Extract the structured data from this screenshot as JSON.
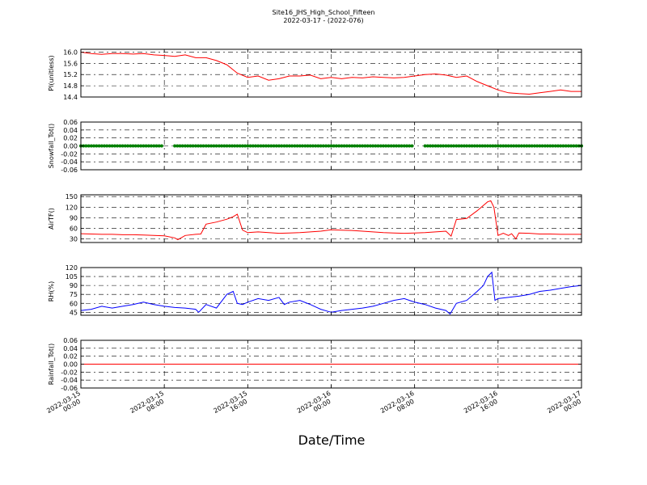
{
  "title": "Site16_JHS_High_School_Fifteen",
  "subtitle": "2022-03-17 - (2022-076)",
  "xlabel": "Date/Time",
  "x_ticks": [
    {
      "t": 0,
      "line1": "2022-03-15",
      "line2": "00:00"
    },
    {
      "t": 8,
      "line1": "2022-03-15",
      "line2": "08:00"
    },
    {
      "t": 16,
      "line1": "2022-03-15",
      "line2": "16:00"
    },
    {
      "t": 24,
      "line1": "2022-03-16",
      "line2": "00:00"
    },
    {
      "t": 32,
      "line1": "2022-03-16",
      "line2": "08:00"
    },
    {
      "t": 40,
      "line1": "2022-03-16",
      "line2": "16:00"
    },
    {
      "t": 48,
      "line1": "2022-03-17",
      "line2": "00:00"
    }
  ],
  "chart_data": [
    {
      "type": "line",
      "ylabel": "Pl(unitless)",
      "ylim": [
        14.4,
        16.1
      ],
      "yticks": [
        14.4,
        14.8,
        15.2,
        15.6,
        16.0
      ],
      "ytick_labels": [
        "14.4",
        "14.8",
        "15.2",
        "15.6",
        "16.0"
      ],
      "grid": true,
      "color": "#ff0000",
      "style": "line",
      "x_hours": [
        0,
        1,
        2,
        3,
        4,
        5,
        6,
        7,
        8,
        9,
        10,
        11,
        12,
        13,
        14,
        15,
        16,
        17,
        18,
        19,
        20,
        21,
        22,
        23,
        24,
        25,
        26,
        27,
        28,
        29,
        30,
        31,
        32,
        33,
        34,
        35,
        36,
        37,
        38,
        39,
        40,
        41,
        42,
        43,
        44,
        45,
        46,
        47,
        48
      ],
      "values": [
        16.0,
        15.95,
        15.92,
        15.95,
        15.95,
        15.93,
        15.95,
        15.9,
        15.88,
        15.85,
        15.9,
        15.8,
        15.8,
        15.7,
        15.55,
        15.25,
        15.1,
        15.15,
        15.0,
        15.05,
        15.15,
        15.15,
        15.18,
        15.05,
        15.1,
        15.05,
        15.1,
        15.08,
        15.12,
        15.1,
        15.08,
        15.1,
        15.15,
        15.2,
        15.22,
        15.18,
        15.1,
        15.15,
        14.95,
        14.8,
        14.65,
        14.55,
        14.52,
        14.5,
        14.55,
        14.6,
        14.65,
        14.6,
        14.6
      ]
    },
    {
      "type": "scatter",
      "ylabel": "Snowfall_Tot()",
      "ylim": [
        -0.06,
        0.06
      ],
      "yticks": [
        -0.06,
        -0.04,
        -0.02,
        0.0,
        0.02,
        0.04,
        0.06
      ],
      "ytick_labels": [
        "-0.06",
        "-0.04",
        "-0.02",
        "0.00",
        "0.02",
        "0.04",
        "0.06"
      ],
      "grid": true,
      "color": "#008000",
      "style": "dots",
      "segments": [
        [
          0,
          7.8
        ],
        [
          9.0,
          31.8
        ],
        [
          33.0,
          48
        ]
      ],
      "value": 0.0
    },
    {
      "type": "line",
      "ylabel": "AirTF()",
      "ylim": [
        20,
        155
      ],
      "yticks": [
        30,
        60,
        90,
        120,
        150
      ],
      "ytick_labels": [
        "30",
        "60",
        "90",
        "120",
        "150"
      ],
      "grid": true,
      "color": "#ff0000",
      "style": "line",
      "x_hours": [
        0,
        1,
        2,
        3,
        4,
        5,
        6,
        7,
        8,
        9,
        9.3,
        10,
        11,
        11.5,
        12,
        13,
        14,
        14.6,
        15,
        15.5,
        16,
        17,
        18,
        19,
        20,
        21,
        22,
        23,
        24,
        25,
        26,
        27,
        28,
        29,
        30,
        31,
        32,
        33,
        34,
        35,
        35.5,
        36,
        37,
        38,
        39,
        39.3,
        39.6,
        40,
        40.5,
        41,
        41.3,
        41.7,
        42,
        43,
        44,
        45,
        46,
        47,
        48
      ],
      "values": [
        45,
        44,
        43,
        43,
        42,
        42,
        41,
        40,
        39,
        33,
        28,
        40,
        43,
        44,
        72,
        78,
        86,
        93,
        100,
        55,
        48,
        50,
        48,
        46,
        47,
        48,
        50,
        52,
        56,
        55,
        54,
        52,
        50,
        48,
        47,
        46,
        47,
        48,
        50,
        52,
        38,
        85,
        88,
        110,
        135,
        138,
        120,
        40,
        46,
        40,
        45,
        30,
        47,
        46,
        44,
        44,
        43,
        43,
        43
      ]
    },
    {
      "type": "line",
      "ylabel": "RH(%)",
      "ylim": [
        40,
        120
      ],
      "yticks": [
        45,
        60,
        75,
        90,
        105,
        120
      ],
      "ytick_labels": [
        "45",
        "60",
        "75",
        "90",
        "105",
        "120"
      ],
      "grid": true,
      "color": "#0000ff",
      "style": "line",
      "x_hours": [
        0,
        1,
        2,
        3,
        4,
        5,
        6,
        7,
        8,
        9,
        10,
        11,
        11.3,
        12,
        13,
        14,
        14.6,
        15,
        15.5,
        16,
        17,
        18,
        19,
        19.5,
        20,
        21,
        22,
        23,
        24,
        25,
        26,
        27,
        28,
        29,
        30,
        31,
        32,
        33,
        34,
        35,
        35.4,
        36,
        37,
        38,
        38.6,
        39,
        39.4,
        39.7,
        40,
        41,
        42,
        43,
        44,
        45,
        46,
        47,
        48
      ],
      "values": [
        48,
        50,
        55,
        52,
        55,
        58,
        62,
        58,
        55,
        53,
        52,
        50,
        45,
        58,
        52,
        75,
        80,
        60,
        58,
        62,
        68,
        65,
        70,
        58,
        62,
        65,
        58,
        50,
        45,
        48,
        50,
        52,
        55,
        60,
        65,
        68,
        62,
        58,
        52,
        48,
        42,
        60,
        65,
        80,
        90,
        105,
        112,
        65,
        68,
        70,
        72,
        75,
        80,
        82,
        85,
        88,
        90
      ]
    },
    {
      "type": "line",
      "ylabel": "Rainfall_Tot()",
      "ylim": [
        -0.06,
        0.06
      ],
      "yticks": [
        -0.06,
        -0.04,
        -0.02,
        0.0,
        0.02,
        0.04,
        0.06
      ],
      "ytick_labels": [
        "-0.06",
        "-0.04",
        "-0.02",
        "0.00",
        "0.02",
        "0.04",
        "0.06"
      ],
      "grid": true,
      "color": "#ff0000",
      "style": "flat",
      "value": 0.0
    }
  ]
}
